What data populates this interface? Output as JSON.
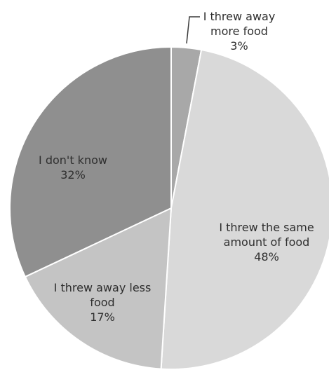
{
  "chart_data": {
    "type": "pie",
    "start_angle_deg": 0,
    "direction": "clockwise",
    "slices": [
      {
        "category": "I threw away more food",
        "label_lines": [
          "I threw away",
          "more food"
        ],
        "value": 3,
        "value_label": "3%",
        "color": "#a8a8a8"
      },
      {
        "category": "I threw the same amount of food",
        "label_lines": [
          "I threw the same",
          "amount of food"
        ],
        "value": 48,
        "value_label": "48%",
        "color": "#d9d9d9"
      },
      {
        "category": "I threw away less food",
        "label_lines": [
          "I threw away less",
          "food"
        ],
        "value": 17,
        "value_label": "17%",
        "color": "#c4c4c4"
      },
      {
        "category": "I don't know",
        "label_lines": [
          "I don't know"
        ],
        "value": 32,
        "value_label": "32%",
        "color": "#8f8f8f"
      }
    ],
    "border_color": "#ffffff",
    "leader_color": "#3a3a3a"
  }
}
